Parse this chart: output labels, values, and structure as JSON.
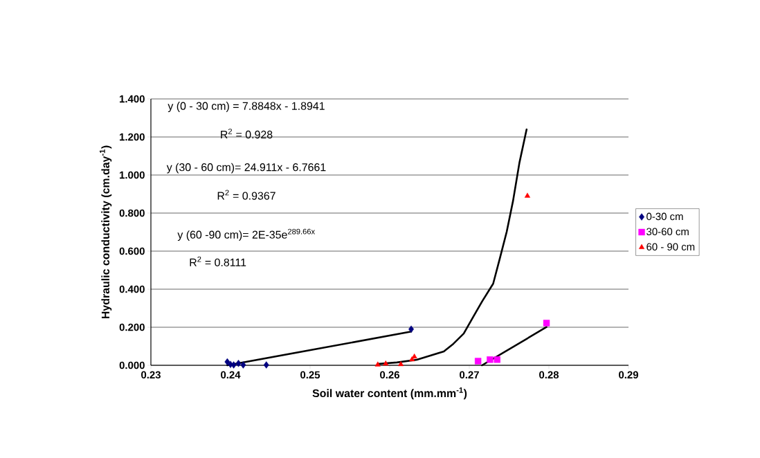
{
  "chart_data": {
    "type": "scatter",
    "xlabel": "Soil water content (mm.mm$^{-1}$)",
    "ylabel": "Hydraulic conductivity (cm.day$^{-1}$)",
    "xlim": [
      0.23,
      0.29
    ],
    "xticks": [
      0.23,
      0.24,
      0.25,
      0.26,
      0.27,
      0.28,
      0.29
    ],
    "ylim": [
      0,
      1.4
    ],
    "yticks": [
      {
        "value": 0,
        "label": "0.000"
      },
      {
        "value": 0.2,
        "label": "0.200"
      },
      {
        "value": 0.4,
        "label": "0.400"
      },
      {
        "value": 0.6,
        "label": "0.600"
      },
      {
        "value": 0.8,
        "label": "0.800"
      },
      {
        "value": 1.0,
        "label": "1.000"
      },
      {
        "value": 1.2,
        "label": "1.200"
      },
      {
        "value": 1.4,
        "label": "1.400"
      }
    ],
    "grid": "y",
    "legend": "right",
    "series": [
      {
        "name": "0-30 cm",
        "color": "#000080",
        "marker": "diamond",
        "x": [
          0.2396,
          0.24,
          0.2404,
          0.241,
          0.2416,
          0.2445,
          0.2627
        ],
        "values": [
          0.018,
          0.005,
          0.002,
          0.01,
          0.002,
          0.002,
          0.19
        ]
      },
      {
        "name": "30-60 cm",
        "color": "#ff00ff",
        "marker": "square",
        "x": [
          0.2711,
          0.2726,
          0.2735,
          0.2797
        ],
        "values": [
          0.022,
          0.03,
          0.03,
          0.222
        ]
      },
      {
        "name": "60 - 90 cm",
        "color": "#ff0000",
        "marker": "triangle",
        "x": [
          0.2585,
          0.2595,
          0.2614,
          0.2628,
          0.2631,
          0.2773
        ],
        "values": [
          0.003,
          0.008,
          0.005,
          0.03,
          0.045,
          0.89
        ]
      },
      {
        "type": "line",
        "color": "#000000",
        "marker": "none",
        "x": [
          0.2396,
          0.2627
        ],
        "values": [
          0.0,
          0.177
        ]
      },
      {
        "type": "line",
        "color": "#000000",
        "marker": "none",
        "x": [
          0.2716,
          0.2797
        ],
        "values": [
          0.0,
          0.201
        ]
      },
      {
        "type": "line",
        "color": "#000000",
        "marker": "none",
        "x": [
          0.2585,
          0.2609,
          0.2634,
          0.2651,
          0.2668,
          0.268,
          0.2693,
          0.2705,
          0.2716,
          0.273,
          0.2738,
          0.2747,
          0.2755,
          0.2763,
          0.2772
        ],
        "values": [
          0.007,
          0.015,
          0.029,
          0.051,
          0.073,
          0.113,
          0.167,
          0.255,
          0.335,
          0.429,
          0.556,
          0.702,
          0.865,
          1.065,
          1.24
        ]
      }
    ],
    "annotations": [
      "y (0 - 30 cm) = 7.8848x - 1.8941",
      "R$^{2}$ = 0.928",
      "y (30 - 60 cm)= 24.911x - 6.7661",
      "R$^{2}$ = 0.9367",
      "y (60 -90 cm)= 2E-35e$^{289.66x}$",
      "R$^{2}$ = 0.8111"
    ]
  }
}
